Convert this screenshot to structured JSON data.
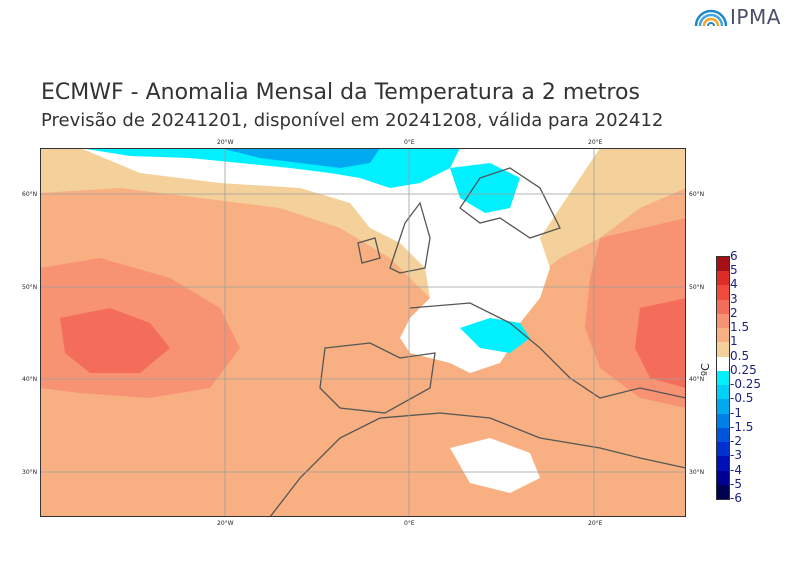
{
  "logo": {
    "text": "IPMA"
  },
  "header": {
    "title": "ECMWF - Anomalia Mensal da Temperatura a 2 metros",
    "subtitle": "Previsão de 20241201, disponível em 20241208, válida para 202412"
  },
  "map": {
    "top_lon_labels": [
      "20°W",
      "0°E",
      "20°E"
    ],
    "bottom_lon_labels": [
      "20°W",
      "0°E",
      "20°E"
    ],
    "left_lat_labels": [
      "60°N",
      "50°N",
      "40°N",
      "30°N"
    ],
    "right_lat_labels": [
      "60°N",
      "50°N",
      "40°N",
      "30°N"
    ]
  },
  "legend": {
    "unit": "ºC",
    "labels": [
      "6",
      "5",
      "4",
      "3",
      "2",
      "1.5",
      "1",
      "0.5",
      "0.25",
      "-0.25",
      "-0.5",
      "-1",
      "-1.5",
      "-2",
      "-3",
      "-4",
      "-5",
      "-6"
    ],
    "colors": [
      "#a50f15",
      "#de2d26",
      "#ef4a3c",
      "#f46d5a",
      "#f79273",
      "#f8b082",
      "#f4d09a",
      "#ffffff",
      "#00f0ff",
      "#00d0f8",
      "#00aaf0",
      "#0080e6",
      "#0055dc",
      "#0030d0",
      "#0010b8",
      "#000090",
      "#000050"
    ]
  }
}
